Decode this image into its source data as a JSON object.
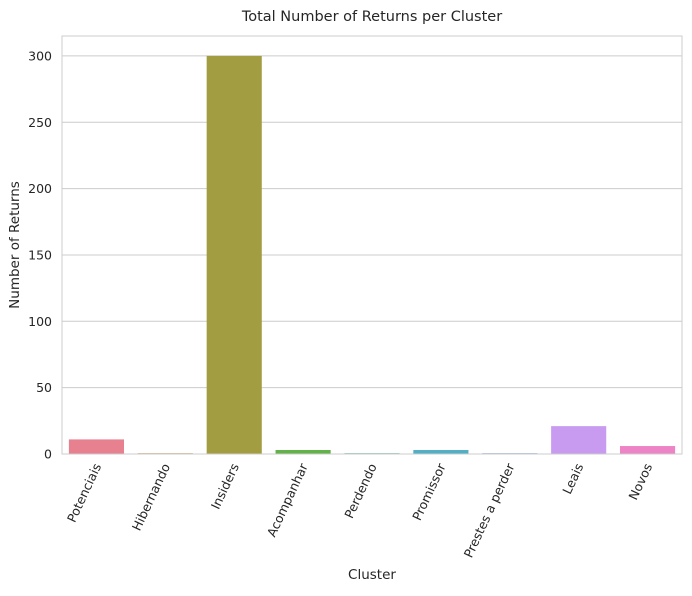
{
  "chart_data": {
    "type": "bar",
    "title": "Total Number of Returns per Cluster",
    "xlabel": "Cluster",
    "ylabel": "Number of Returns",
    "categories": [
      "Potenciais",
      "Hibernando",
      "Insiders",
      "Acompanhar",
      "Perdendo",
      "Promissor",
      "Prestes a perder",
      "Leais",
      "Novos"
    ],
    "values": [
      11,
      0,
      300,
      3,
      0,
      3,
      0,
      21,
      6
    ],
    "colors": [
      "#e8818f",
      "#cf8f43",
      "#a39d41",
      "#62b149",
      "#4fb28e",
      "#52aec4",
      "#7ba4e0",
      "#c89bf0",
      "#ed84c6"
    ],
    "yticks": [
      0,
      50,
      100,
      150,
      200,
      250,
      300
    ],
    "ylim": [
      0,
      315
    ],
    "grid": true,
    "legend": "none"
  }
}
